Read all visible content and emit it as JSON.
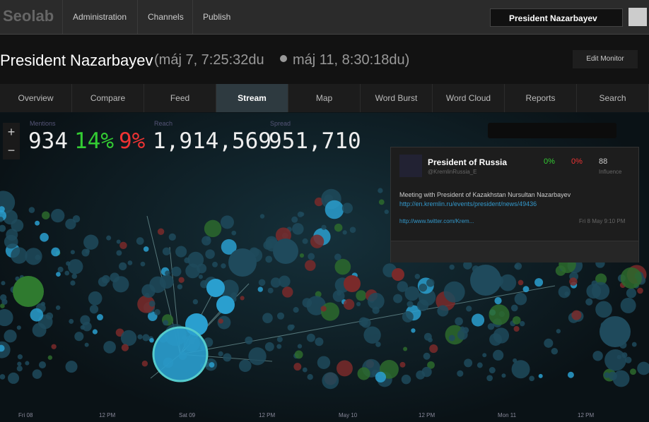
{
  "topbar": {
    "logo": "Seolab",
    "nav": [
      "Administration",
      "Channels",
      "Publish"
    ],
    "monitor": "President Nazarbayev"
  },
  "header": {
    "title": "President Nazarbayev",
    "range_start": "(máj 7, 7:25:32du",
    "range_end": "máj 11, 8:30:18du)",
    "edit": "Edit Monitor"
  },
  "tabs": [
    "Overview",
    "Compare",
    "Feed",
    "Stream",
    "Map",
    "Word Burst",
    "Word Cloud",
    "Reports",
    "Search"
  ],
  "stats": {
    "mentions_label": "Mentions",
    "mentions": "934",
    "positive": "14%",
    "negative": "9%",
    "reach_label": "Reach",
    "reach": "1,914,569",
    "spread_label": "Spread",
    "spread": "951,710"
  },
  "card": {
    "name": "President of Russia",
    "handle": "@KremlinRussia_E",
    "positive": "0%",
    "negative": "0%",
    "influence": "88",
    "influence_label": "Influence",
    "text": "Meeting with President of Kazakhstan Nursultan Nazarbayev",
    "link": "http://en.kremlin.ru/events/president/news/49436",
    "source": "http://www.twitter.com/Krem...",
    "date": "Fri 8 May 9:10 PM"
  },
  "timeline": [
    "Fri 08",
    "12 PM",
    "Sat 09",
    "12 PM",
    "May 10",
    "12 PM",
    "Mon 11",
    "12 PM"
  ]
}
